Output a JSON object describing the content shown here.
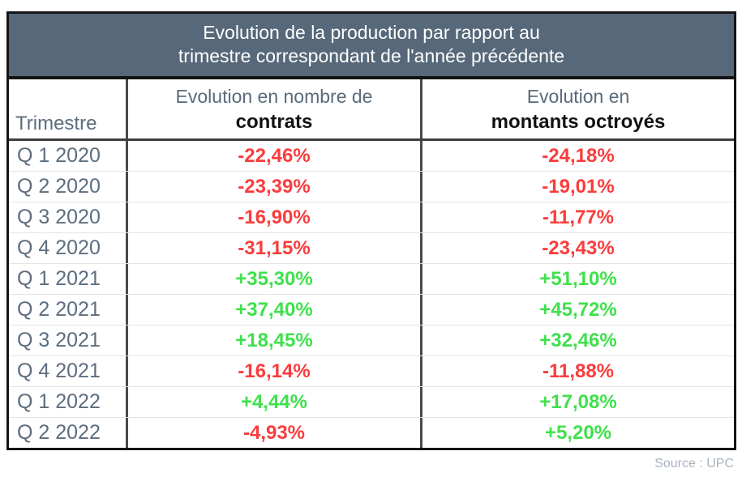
{
  "chart_data": {
    "type": "table",
    "title_lines": [
      "Evolution de la production par rapport au",
      "trimestre correspondant de l'année précédente"
    ],
    "columns": {
      "trimestre": "Trimestre",
      "contrats": {
        "line1": "Evolution en nombre de",
        "line2": "contrats"
      },
      "montants": {
        "line1": "Evolution en",
        "line2": "montants octroyés"
      }
    },
    "rows": [
      {
        "trimestre": "Q 1 2020",
        "contrats": "-22,46%",
        "montants": "-24,18%"
      },
      {
        "trimestre": "Q 2 2020",
        "contrats": "-23,39%",
        "montants": "-19,01%"
      },
      {
        "trimestre": "Q 3 2020",
        "contrats": "-16,90%",
        "montants": "-11,77%"
      },
      {
        "trimestre": "Q 4 2020",
        "contrats": "-31,15%",
        "montants": "-23,43%"
      },
      {
        "trimestre": "Q 1 2021",
        "contrats": "+35,30%",
        "montants": "+51,10%"
      },
      {
        "trimestre": "Q 2 2021",
        "contrats": "+37,40%",
        "montants": "+45,72%"
      },
      {
        "trimestre": "Q 3 2021",
        "contrats": "+18,45%",
        "montants": "+32,46%"
      },
      {
        "trimestre": "Q 4 2021",
        "contrats": "-16,14%",
        "montants": "-11,88%"
      },
      {
        "trimestre": "Q 1 2022",
        "contrats": "+4,44%",
        "montants": "+17,08%"
      },
      {
        "trimestre": "Q 2 2022",
        "contrats": "-4,93%",
        "montants": "+5,20%"
      }
    ]
  },
  "source": "Source : UPC",
  "colors": {
    "positive": "#3fe04c",
    "negative": "#fa3c3c",
    "title_bg": "#566879",
    "title_text": "#ffffff",
    "trimestre_text": "#5d6d7e",
    "source_text": "#a9b3bf"
  }
}
